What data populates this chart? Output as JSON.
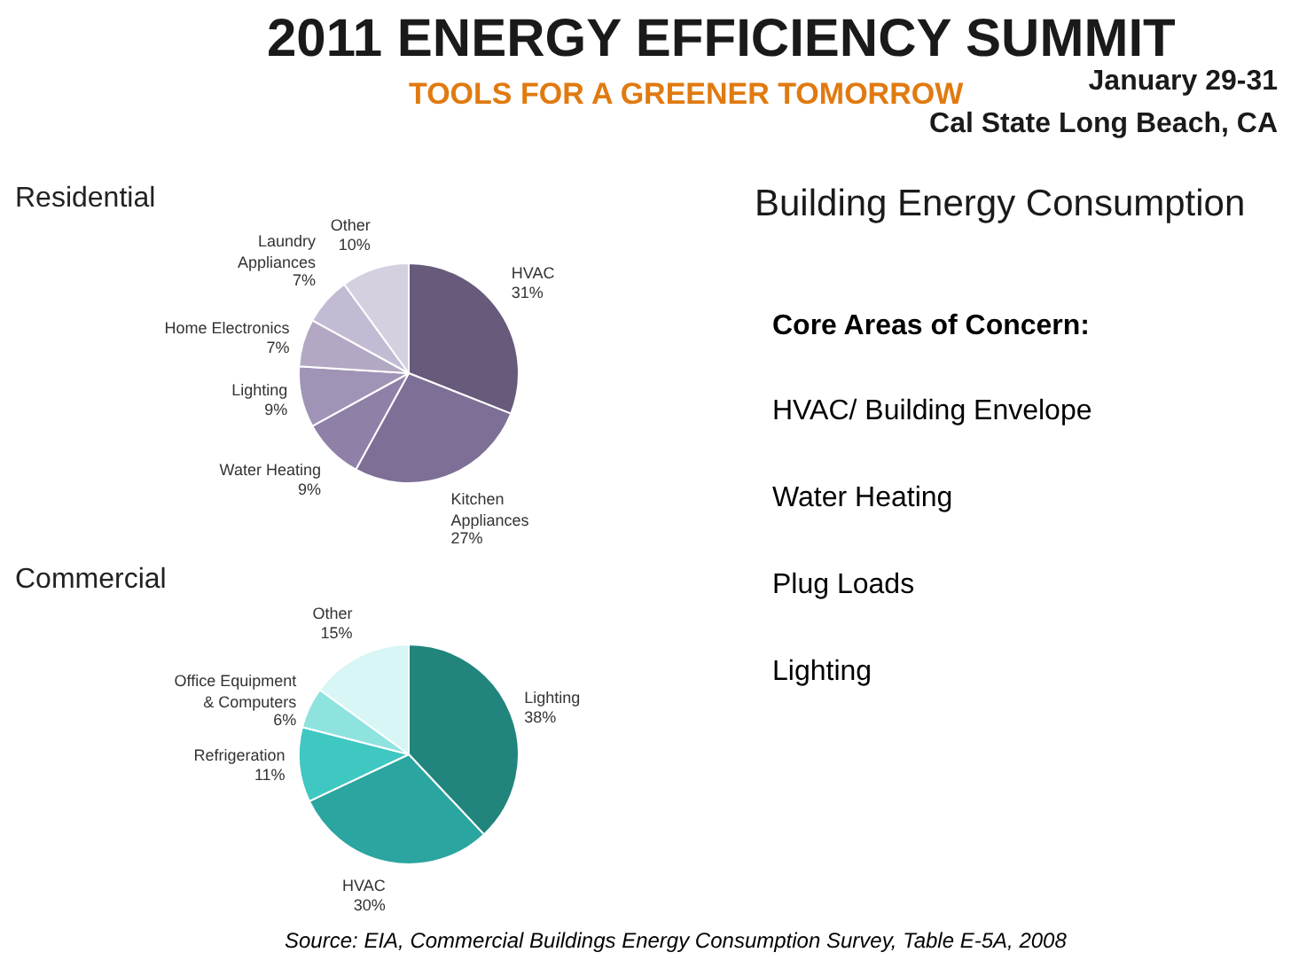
{
  "chart_data": [
    {
      "type": "other",
      "title": "2011 ENERGY EFFICIENCY SUMMIT",
      "subtitle": "TOOLS FOR A GREENER TOMORROW",
      "annotations": [
        "January 29-31",
        "Cal State Long Beach, CA"
      ]
    },
    {
      "type": "pie",
      "title": "Residential",
      "categories": [
        "HVAC",
        "Kitchen Appliances",
        "Water Heating",
        "Lighting",
        "Home Electronics",
        "Laundry Appliances",
        "Other"
      ],
      "values": [
        31,
        27,
        9,
        9,
        7,
        7,
        10
      ],
      "value_labels": [
        "31%",
        "27%",
        "9%",
        "9%",
        "7%",
        "7%",
        "10%"
      ],
      "colors": [
        "#675a7b",
        "#7e6f96",
        "#8f80a8",
        "#a094b6",
        "#b2a8c4",
        "#c3bbd3",
        "#d5d0e0"
      ]
    },
    {
      "type": "pie",
      "title": "Commercial",
      "categories": [
        "Lighting",
        "HVAC",
        "Refrigeration",
        "Office Equipment & Computers",
        "Other"
      ],
      "values": [
        38,
        30,
        11,
        6,
        15
      ],
      "value_labels": [
        "38%",
        "30%",
        "11%",
        "6%",
        "15%"
      ],
      "colors": [
        "#21857d",
        "#2ba5a0",
        "#3fc7c2",
        "#8ee3df",
        "#d7f6f5"
      ]
    },
    {
      "type": "other",
      "title": "Building Energy Consumption",
      "subtitle": "Core Areas of Concern:",
      "annotations": [
        "HVAC/ Building Envelope",
        "Water Heating",
        "Plug Loads",
        "Lighting"
      ]
    },
    {
      "type": "other",
      "annotations": [
        "Source: EIA, Commercial Buildings Energy Consumption Survey, Table E-5A, 2008"
      ]
    }
  ]
}
